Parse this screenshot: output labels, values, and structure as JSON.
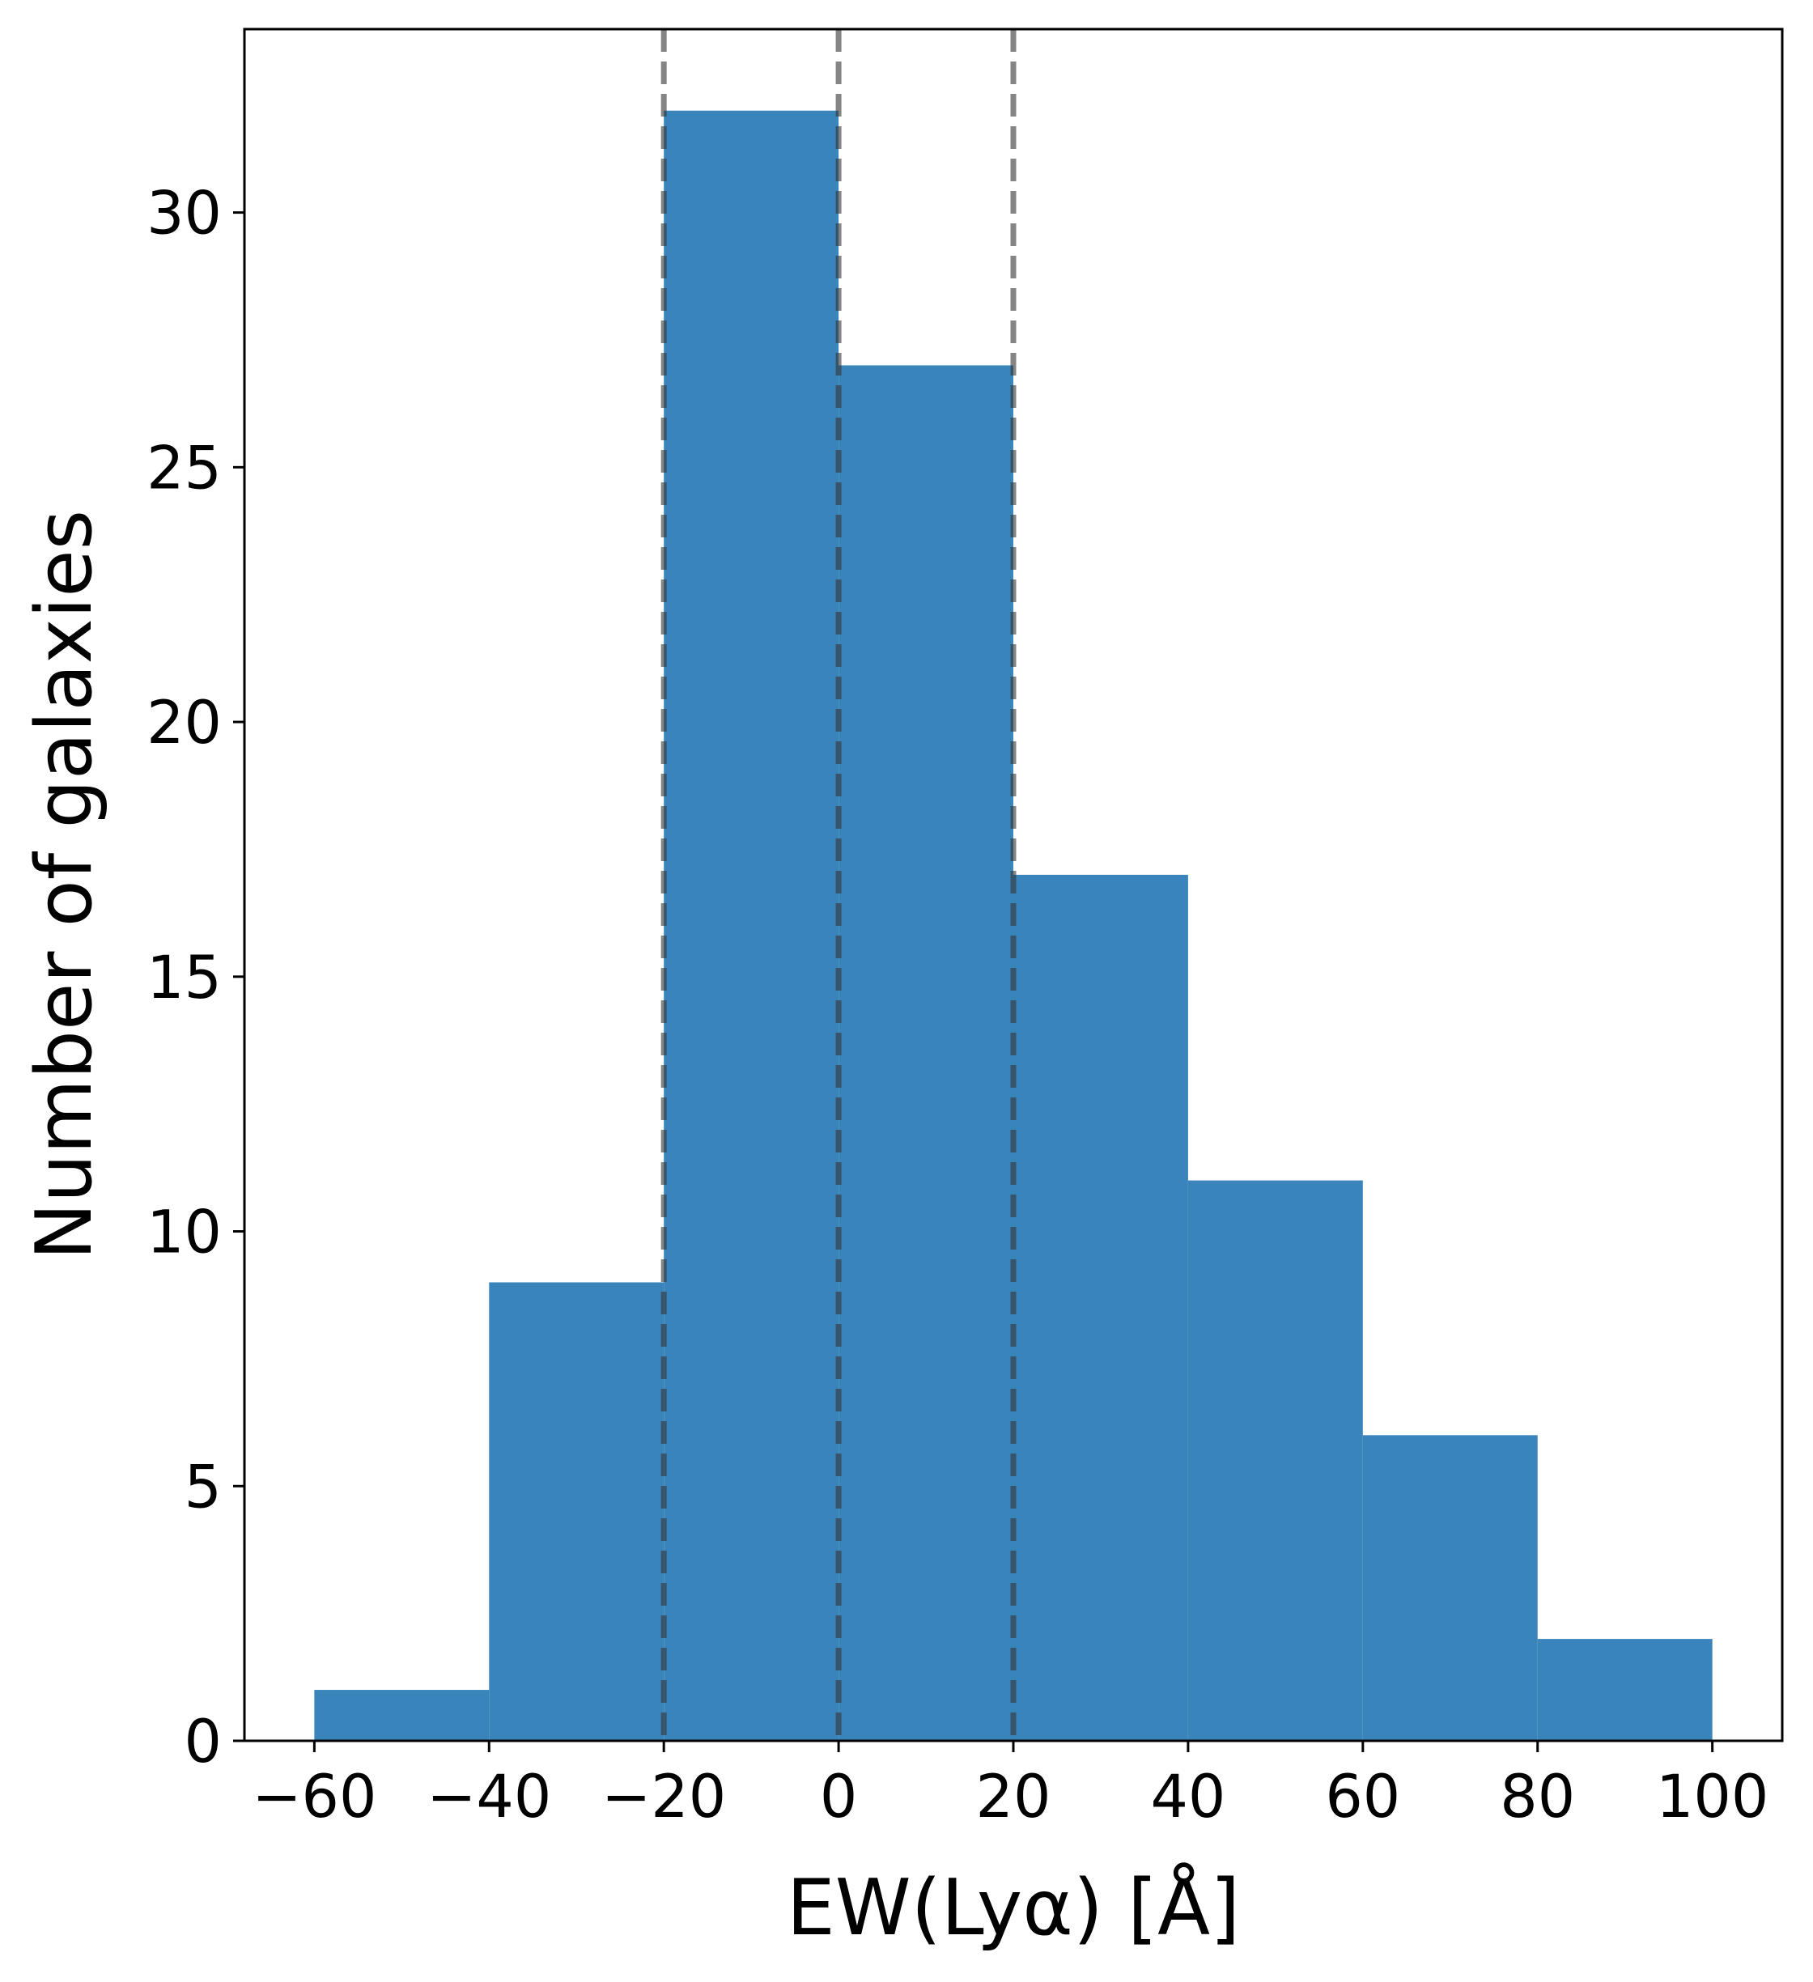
{
  "chart_data": {
    "type": "bar",
    "title": "",
    "xlabel": "EW(Lyα) [Å]",
    "ylabel": "Number of galaxies",
    "bin_edges": [
      -60,
      -40,
      -20,
      0,
      20,
      40,
      60,
      80,
      100
    ],
    "values": [
      1,
      9,
      32,
      27,
      17,
      11,
      6,
      2
    ],
    "xlim": [
      -68,
      108
    ],
    "ylim": [
      0,
      33.6
    ],
    "xticks": [
      -60,
      -40,
      -20,
      0,
      20,
      40,
      60,
      80,
      100
    ],
    "xtick_labels": [
      "−60",
      "−40",
      "−20",
      "0",
      "20",
      "40",
      "60",
      "80",
      "100"
    ],
    "yticks": [
      0,
      5,
      10,
      15,
      20,
      25,
      30
    ],
    "ytick_labels": [
      "0",
      "5",
      "10",
      "15",
      "20",
      "25",
      "30"
    ],
    "vlines": [
      -20,
      0,
      20
    ],
    "grid": false,
    "colors": {
      "bar": "#3a84bc",
      "vline": "#333333"
    }
  }
}
